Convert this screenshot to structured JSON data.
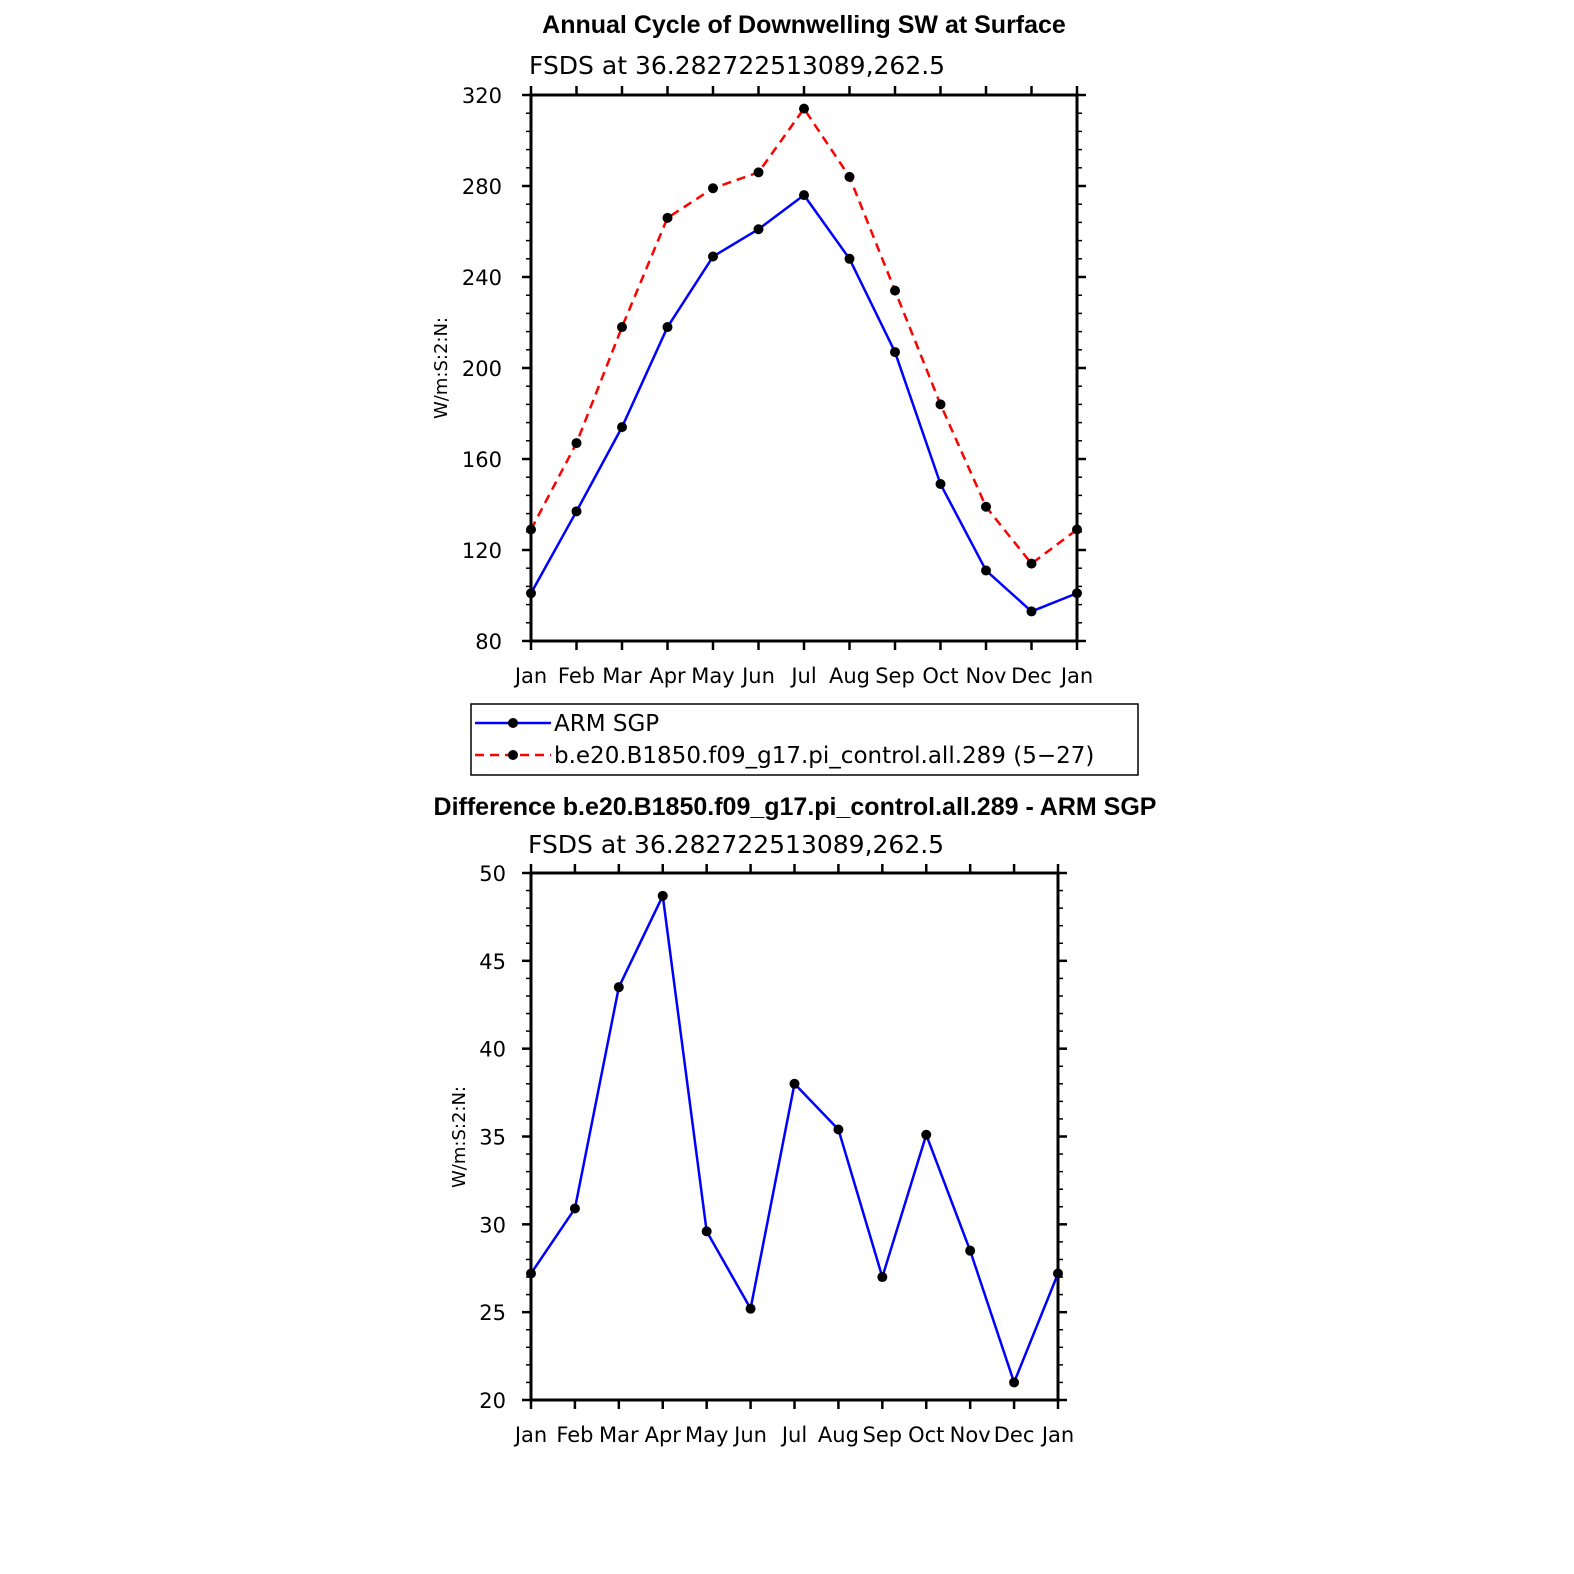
{
  "chart_data": [
    {
      "type": "line",
      "title": "Annual Cycle of Downwelling SW at Surface",
      "subtitle": "FSDS at 36.282722513089,262.5",
      "ylabel": "W/m:S:2:N:",
      "xlabel": "",
      "categories": [
        "Jan",
        "Feb",
        "Mar",
        "Apr",
        "May",
        "Jun",
        "Jul",
        "Aug",
        "Sep",
        "Oct",
        "Nov",
        "Dec",
        "Jan"
      ],
      "ylim": [
        80,
        320
      ],
      "yticks": [
        80,
        120,
        160,
        200,
        240,
        280,
        320
      ],
      "legend_position": "below",
      "series": [
        {
          "name": "ARM SGP",
          "color": "#0000ff",
          "dash": "solid",
          "values": [
            101,
            137,
            174,
            218,
            249,
            261,
            276,
            248,
            207,
            149,
            111,
            93,
            101
          ]
        },
        {
          "name": "b.e20.B1850.f09_g17.pi_control.all.289 (5−27)",
          "color": "#ff0000",
          "dash": "dashed",
          "values": [
            129,
            167,
            218,
            266,
            279,
            286,
            314,
            284,
            234,
            184,
            139,
            114,
            129
          ]
        }
      ]
    },
    {
      "type": "line",
      "title": "Difference b.e20.B1850.f09_g17.pi_control.all.289 - ARM SGP",
      "subtitle": "FSDS at 36.282722513089,262.5",
      "ylabel": "W/m:S:2:N:",
      "xlabel": "",
      "categories": [
        "Jan",
        "Feb",
        "Mar",
        "Apr",
        "May",
        "Jun",
        "Jul",
        "Aug",
        "Sep",
        "Oct",
        "Nov",
        "Dec",
        "Jan"
      ],
      "ylim": [
        20,
        50
      ],
      "yticks": [
        20,
        25,
        30,
        35,
        40,
        45,
        50
      ],
      "series": [
        {
          "color": "#0000ff",
          "dash": "solid",
          "values": [
            27.2,
            30.9,
            43.5,
            48.7,
            29.6,
            25.2,
            38.0,
            35.4,
            27.0,
            35.1,
            28.5,
            21.0,
            27.2
          ]
        }
      ]
    }
  ]
}
